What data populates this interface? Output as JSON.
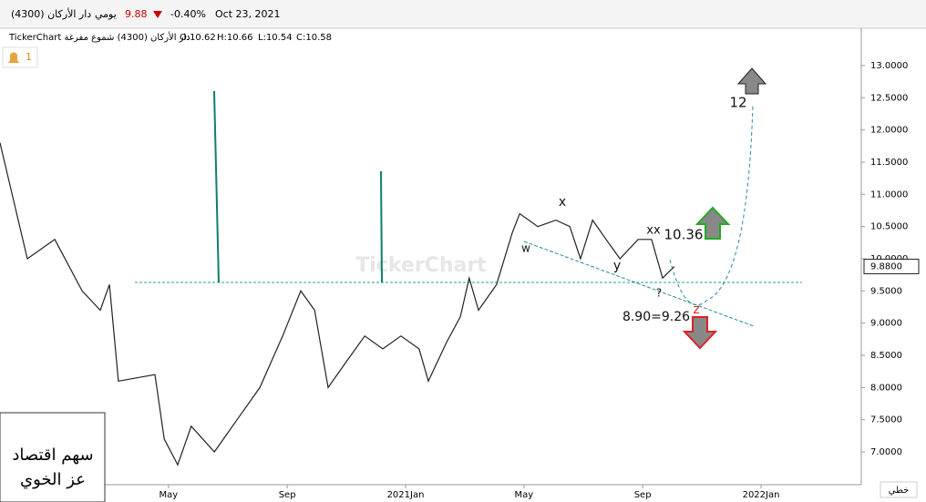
{
  "header": {
    "symbol": "دار الأركان (4300)",
    "period": "يومي",
    "price": "9.88",
    "change": "-0.40%",
    "date": "Oct 23, 2021"
  },
  "subheader": {
    "name": "TickerChart دار الأركان (4300) شموع مفرغة",
    "open": "O:10.62",
    "high": "H:10.66",
    "low": "L:10.54",
    "close": "C:10.58"
  },
  "alerts": "1",
  "watermark": "TickerChart",
  "footer_box": [
    "سهم اقتصاد",
    "عز الخوي"
  ],
  "scale_type": "خطي",
  "chart_data": {
    "type": "line",
    "x": [
      2019.859,
      2019.936,
      2020.013,
      2020.09,
      2020.141,
      2020.167,
      2020.192,
      2020.295,
      2020.321,
      2020.359,
      2020.397,
      2020.462,
      2020.526,
      2020.59,
      2020.654,
      2020.705,
      2020.744,
      2020.782,
      2020.833,
      2020.885,
      2020.936,
      2020.987,
      2021.038,
      2021.064,
      2021.115,
      2021.154,
      2021.179,
      2021.205,
      2021.256,
      2021.3,
      2021.321,
      2021.372,
      2021.423,
      2021.462,
      2021.492,
      2021.526,
      2021.564,
      2021.603,
      2021.654,
      2021.692,
      2021.723,
      2021.756
    ],
    "series": [
      {
        "color": "#222222",
        "values": [
          11.8,
          10.0,
          10.3,
          9.5,
          9.2,
          9.6,
          8.1,
          8.2,
          7.2,
          6.8,
          7.4,
          7.0,
          7.5,
          8.0,
          8.8,
          9.5,
          9.2,
          8.0,
          8.4,
          8.8,
          8.6,
          8.8,
          8.6,
          8.1,
          8.7,
          9.1,
          9.7,
          9.2,
          9.6,
          10.4,
          10.7,
          10.5,
          10.6,
          10.5,
          10.0,
          10.6,
          10.3,
          10.0,
          10.3,
          10.3,
          9.7,
          9.88
        ]
      }
    ],
    "xlim": [
      2019.859,
      2022.282
    ],
    "xticks": [
      {
        "value": 2020.333,
        "label": "May"
      },
      {
        "value": 2020.667,
        "label": "Sep"
      },
      {
        "value": 2021.0,
        "label": "2021Jan"
      },
      {
        "value": 2021.333,
        "label": "May"
      },
      {
        "value": 2021.667,
        "label": "Sep"
      },
      {
        "value": 2022.0,
        "label": "2022Jan"
      }
    ],
    "ylim": [
      6.491,
      13.509
    ],
    "yticks": [
      {
        "value": 7,
        "label": "7.0000"
      },
      {
        "value": 7.5,
        "label": "7.5000"
      },
      {
        "value": 8,
        "label": "8.0000"
      },
      {
        "value": 8.5,
        "label": "8.5000"
      },
      {
        "value": 9,
        "label": "9.0000"
      },
      {
        "value": 9.5,
        "label": "9.5000"
      },
      {
        "value": 10,
        "label": "10.0000"
      },
      {
        "value": 10.5,
        "label": "10.5000"
      },
      {
        "value": 11,
        "label": "11.0000"
      },
      {
        "value": 11.5,
        "label": "11.5000"
      },
      {
        "value": 12,
        "label": "12.0000"
      },
      {
        "value": 12.5,
        "label": "12.5000"
      },
      {
        "value": 13,
        "label": "13.0000"
      }
    ],
    "last_price": {
      "value": 9.88,
      "label": "9.8800"
    },
    "annotations": [
      "x",
      "xx",
      "w",
      "y",
      "?",
      "z",
      "10.36",
      "8.90=9.26",
      "12"
    ]
  }
}
